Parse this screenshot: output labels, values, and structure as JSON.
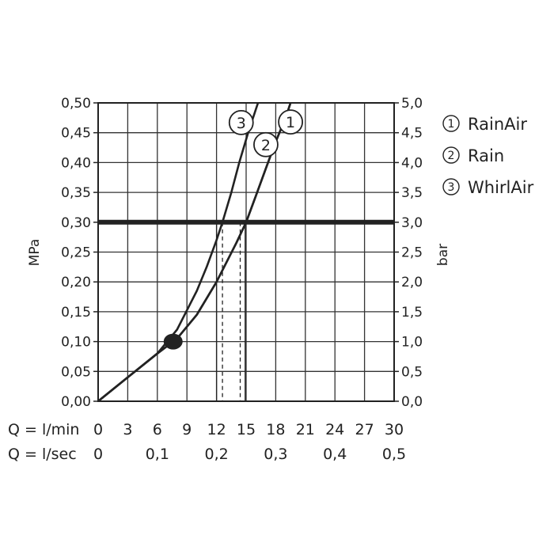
{
  "chart_data": {
    "type": "line",
    "xlabel": "Q = l/min",
    "xlabel_secondary": "Q = l/sec",
    "ylabel": "MPa",
    "ylabel_right": "bar",
    "xlim": [
      0,
      30
    ],
    "ylim": [
      0,
      0.5
    ],
    "x_ticks": [
      "0",
      "3",
      "6",
      "9",
      "12",
      "15",
      "18",
      "21",
      "24",
      "27",
      "30"
    ],
    "x_ticks_secondary": [
      {
        "x": 0,
        "label": "0"
      },
      {
        "x": 6,
        "label": "0,1"
      },
      {
        "x": 12,
        "label": "0,2"
      },
      {
        "x": 18,
        "label": "0,3"
      },
      {
        "x": 24,
        "label": "0,4"
      },
      {
        "x": 30,
        "label": "0,5"
      }
    ],
    "y_ticks_left": [
      "0,00",
      "0,05",
      "0,10",
      "0,15",
      "0,20",
      "0,25",
      "0,30",
      "0,35",
      "0,40",
      "0,45",
      "0,50"
    ],
    "y_ticks_right": [
      "0,0",
      "0,5",
      "1,0",
      "1,5",
      "2,0",
      "2,5",
      "3,0",
      "3,5",
      "4,0",
      "4,5",
      "5,0"
    ],
    "grid": true,
    "reference_line": {
      "y": 0.3
    },
    "guides": [
      {
        "x": 12.0,
        "style": "solid"
      },
      {
        "x": 12.6,
        "style": "dashed"
      },
      {
        "x": 14.4,
        "style": "dashed"
      },
      {
        "x": 14.9,
        "style": "solid"
      }
    ],
    "min_flow_point": {
      "x": 7.6,
      "y": 0.1
    },
    "legend": [
      {
        "marker": "1",
        "label": "RainAir"
      },
      {
        "marker": "2",
        "label": "Rain"
      },
      {
        "marker": "3",
        "label": "WhirlAir"
      }
    ],
    "series": [
      {
        "name": "RainAir",
        "marker": "1",
        "label_at": {
          "x": 19.5,
          "y": 0.468
        },
        "points": [
          [
            0,
            0
          ],
          [
            3,
            0.04
          ],
          [
            6,
            0.08
          ],
          [
            8,
            0.105
          ],
          [
            10,
            0.145
          ],
          [
            12,
            0.2
          ],
          [
            14,
            0.265
          ],
          [
            15,
            0.3
          ],
          [
            16,
            0.345
          ],
          [
            17,
            0.39
          ],
          [
            18,
            0.435
          ],
          [
            19,
            0.475
          ],
          [
            19.5,
            0.5
          ]
        ]
      },
      {
        "name": "Rain",
        "marker": "2",
        "label_at": {
          "x": 17.0,
          "y": 0.43
        },
        "points": [
          [
            0,
            0
          ],
          [
            3,
            0.04
          ],
          [
            6,
            0.08
          ],
          [
            8,
            0.105
          ],
          [
            10,
            0.145
          ],
          [
            12,
            0.2
          ],
          [
            14,
            0.265
          ],
          [
            15,
            0.3
          ],
          [
            16,
            0.345
          ],
          [
            17,
            0.39
          ],
          [
            18,
            0.435
          ],
          [
            19,
            0.475
          ],
          [
            19.5,
            0.5
          ]
        ]
      },
      {
        "name": "WhirlAir",
        "marker": "3",
        "label_at": {
          "x": 14.5,
          "y": 0.467
        },
        "points": [
          [
            0,
            0
          ],
          [
            3,
            0.04
          ],
          [
            6,
            0.08
          ],
          [
            8,
            0.12
          ],
          [
            10,
            0.185
          ],
          [
            11,
            0.225
          ],
          [
            12,
            0.27
          ],
          [
            12.6,
            0.3
          ],
          [
            13.5,
            0.35
          ],
          [
            14.3,
            0.4
          ],
          [
            15.2,
            0.45
          ],
          [
            16,
            0.49
          ],
          [
            16.2,
            0.5
          ]
        ]
      }
    ]
  }
}
